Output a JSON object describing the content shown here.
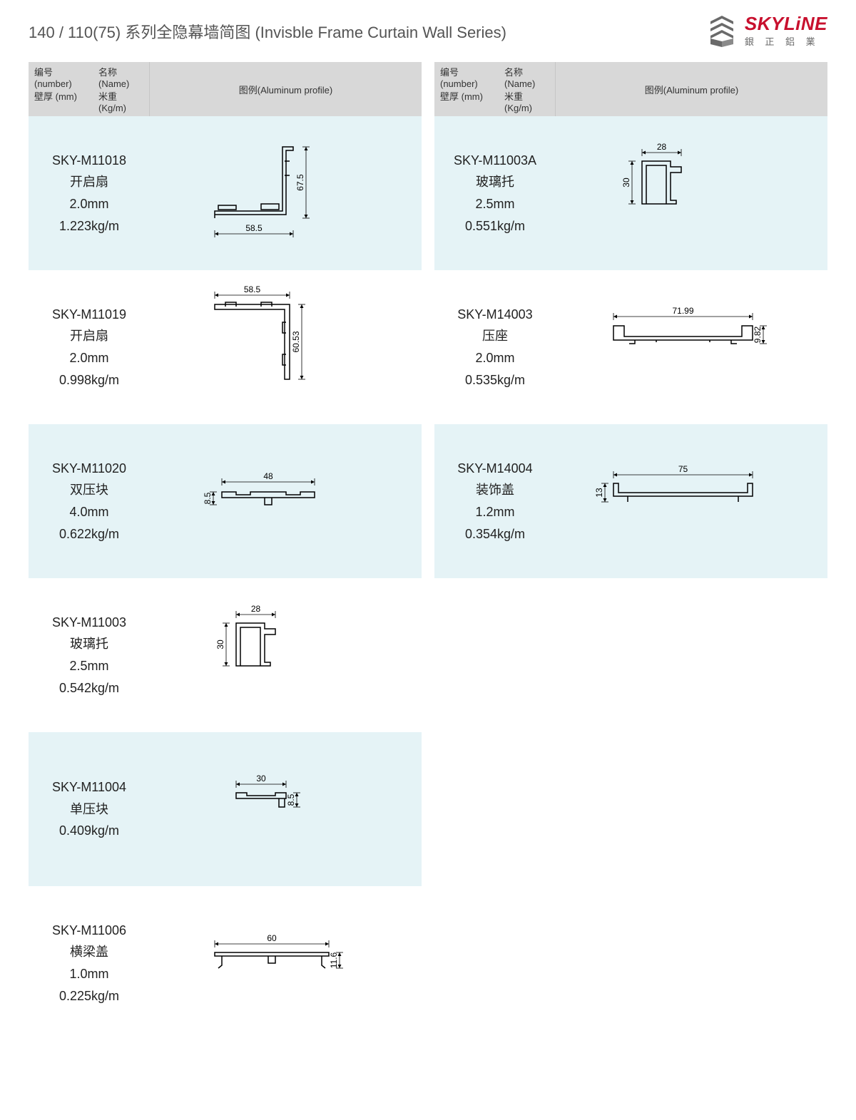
{
  "page_title": "140 / 110(75) 系列全隐幕墙简图 (Invisble Frame Curtain Wall Series)",
  "logo": {
    "brand": "SKYLiNE",
    "subtitle": "銀 正 鋁 業",
    "brand_color": "#c8102e",
    "icon_color": "#6a6a6a"
  },
  "table_headers": {
    "h_number": "编号 (number)",
    "h_name": "名称 (Name)",
    "h_thickness": "壁厚 (mm)",
    "h_weight": "米重 (Kg/m)",
    "h_profile": "图例(Aluminum profile)"
  },
  "left_rows": [
    {
      "number": "SKY-M11018",
      "name": "开启扇",
      "thickness": "2.0mm",
      "weight": "1.223kg/m",
      "dim_w": "58.5",
      "dim_h": "67.5",
      "profile_shape": "L_big"
    },
    {
      "number": "SKY-M11019",
      "name": "开启扇",
      "thickness": "2.0mm",
      "weight": "0.998kg/m",
      "dim_w": "58.5",
      "dim_h": "60.53",
      "profile_shape": "L_top"
    },
    {
      "number": "SKY-M11020",
      "name": "双压块",
      "thickness": "4.0mm",
      "weight": "0.622kg/m",
      "dim_w": "48",
      "dim_h": "8.5",
      "profile_shape": "flat_wide"
    },
    {
      "number": "SKY-M11003",
      "name": "玻璃托",
      "thickness": "2.5mm",
      "weight": "0.542kg/m",
      "dim_w": "28",
      "dim_h": "30",
      "profile_shape": "C_small"
    },
    {
      "number": "SKY-M11004",
      "name": "单压块",
      "thickness": "",
      "weight": "0.409kg/m",
      "dim_w": "30",
      "dim_h": "8.5",
      "profile_shape": "flat_small"
    },
    {
      "number": "SKY-M11006",
      "name": "横梁盖",
      "thickness": "1.0mm",
      "weight": "0.225kg/m",
      "dim_w": "60",
      "dim_h": "11.6",
      "profile_shape": "cap_wide"
    }
  ],
  "right_rows": [
    {
      "number": "SKY-M11003A",
      "name": "玻璃托",
      "thickness": "2.5mm",
      "weight": "0.551kg/m",
      "dim_w": "28",
      "dim_h": "30",
      "profile_shape": "C_small"
    },
    {
      "number": "SKY-M14003",
      "name": "压座",
      "thickness": "2.0mm",
      "weight": "0.535kg/m",
      "dim_w": "71.99",
      "dim_h": "9.82",
      "profile_shape": "wide_seat"
    },
    {
      "number": "SKY-M14004",
      "name": "装饰盖",
      "thickness": "1.2mm",
      "weight": "0.354kg/m",
      "dim_w": "75",
      "dim_h": "13",
      "profile_shape": "wide_cap"
    }
  ],
  "colors": {
    "header_bg": "#d8d8d8",
    "row_odd_bg": "#e5f3f6",
    "row_even_bg": "#ffffff",
    "text": "#222222",
    "title_text": "#545454",
    "line": "#000000"
  }
}
